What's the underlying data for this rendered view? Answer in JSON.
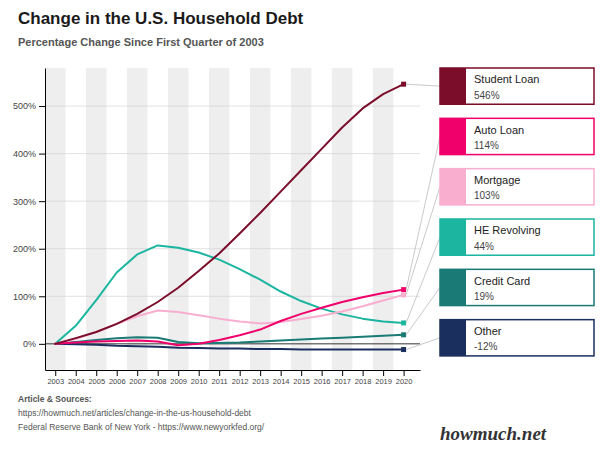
{
  "chart_data": {
    "type": "line",
    "title": "Change in the U.S. Household Debt",
    "subtitle": "Percentage Change Since First Quarter of 2003",
    "annotations": [
      "Article & Sources:",
      "https://howmuch.net/articles/change-in-the-us-household-debt",
      "Federal Reserve Bank of New York - https://www.newyorkfed.org/",
      "howmuch.net"
    ],
    "x": [
      2003,
      2004,
      2005,
      2006,
      2007,
      2008,
      2009,
      2010,
      2011,
      2012,
      2013,
      2014,
      2015,
      2016,
      2017,
      2018,
      2019,
      2020
    ],
    "series": [
      {
        "name": "Student Loan",
        "color": "#7b0d2a",
        "values": [
          0,
          12,
          25,
          42,
          63,
          88,
          118,
          153,
          190,
          232,
          275,
          320,
          365,
          410,
          455,
          495,
          525,
          546
        ],
        "value_labels": [
          null,
          null,
          null,
          null,
          null,
          null,
          null,
          null,
          null,
          null,
          null,
          null,
          null,
          null,
          null,
          null,
          null,
          "546%"
        ]
      },
      {
        "name": "Auto Loan",
        "color": "#f0006a",
        "values": [
          0,
          3,
          5,
          6,
          7,
          5,
          -3,
          0,
          8,
          18,
          30,
          48,
          63,
          76,
          88,
          98,
          107,
          114
        ],
        "value_labels": [
          null,
          null,
          null,
          null,
          null,
          null,
          null,
          null,
          null,
          null,
          null,
          null,
          null,
          null,
          null,
          null,
          null,
          "114%"
        ]
      },
      {
        "name": "Mortgage",
        "color": "#f9aed0",
        "values": [
          0,
          10,
          25,
          42,
          58,
          70,
          67,
          60,
          53,
          47,
          43,
          46,
          52,
          59,
          68,
          79,
          91,
          103
        ],
        "value_labels": [
          null,
          null,
          null,
          null,
          null,
          null,
          null,
          null,
          null,
          null,
          null,
          null,
          null,
          null,
          null,
          null,
          null,
          "103%"
        ]
      },
      {
        "name": "HE Revolving",
        "color": "#1bb5a0",
        "values": [
          0,
          38,
          92,
          150,
          188,
          207,
          202,
          192,
          177,
          157,
          135,
          110,
          90,
          74,
          62,
          53,
          47,
          44
        ],
        "value_labels": [
          null,
          null,
          null,
          null,
          null,
          null,
          null,
          null,
          null,
          null,
          null,
          null,
          null,
          null,
          null,
          null,
          null,
          "44%"
        ]
      },
      {
        "name": "Credit Card",
        "color": "#1a7a75",
        "values": [
          0,
          4,
          8,
          12,
          14,
          13,
          4,
          1,
          2,
          3,
          5,
          7,
          9,
          11,
          13,
          15,
          17,
          19
        ],
        "value_labels": [
          null,
          null,
          null,
          null,
          null,
          null,
          null,
          null,
          null,
          null,
          null,
          null,
          null,
          null,
          null,
          null,
          null,
          "19%"
        ]
      },
      {
        "name": "Other",
        "color": "#1a2f5e",
        "values": [
          0,
          -1,
          -2,
          -4,
          -5,
          -6,
          -8,
          -9,
          -10,
          -10,
          -11,
          -11,
          -12,
          -12,
          -12,
          -12,
          -12,
          -12
        ],
        "value_labels": [
          null,
          null,
          null,
          null,
          null,
          null,
          null,
          null,
          null,
          null,
          null,
          null,
          null,
          null,
          null,
          null,
          null,
          "-12%"
        ]
      }
    ],
    "xlim": [
      2002.5,
      2020.8
    ],
    "xticks": [
      2003,
      2004,
      2005,
      2006,
      2007,
      2008,
      2009,
      2010,
      2011,
      2012,
      2013,
      2014,
      2015,
      2016,
      2017,
      2018,
      2019,
      2020
    ],
    "ylim": [
      -55,
      580
    ],
    "yticks": [
      {
        "value": 0,
        "label": "0%"
      },
      {
        "value": 100,
        "label": "100%"
      },
      {
        "value": 200,
        "label": "200%"
      },
      {
        "value": 300,
        "label": "300%"
      },
      {
        "value": 400,
        "label": "400%"
      },
      {
        "value": 500,
        "label": "500%"
      }
    ],
    "grid": true
  }
}
